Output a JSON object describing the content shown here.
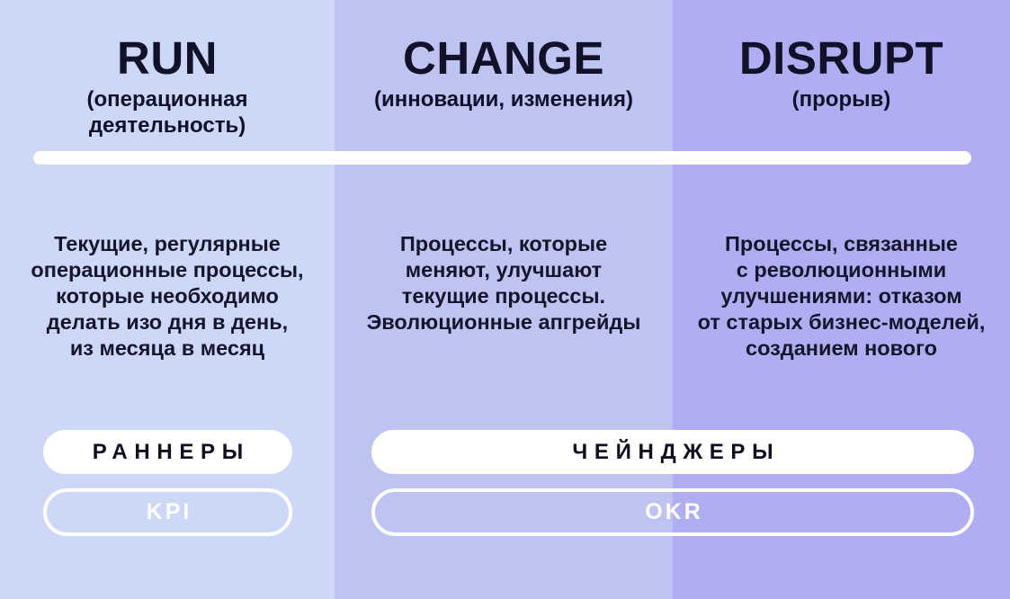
{
  "columns": [
    {
      "title": "RUN",
      "subtitle": "(операционная\nдеятельность)",
      "body": "Текущие, регулярные\nоперационные процессы,\nкоторые необходимо\nделать изо дня в день,\nиз месяца в месяц",
      "bg_color": "#cdd8f8"
    },
    {
      "title": "CHANGE",
      "subtitle": "(инновации, изменения)",
      "body": "Процессы, которые\nменяют, улучшают\nтекущие процессы.\nЭволюционные апгрейды",
      "bg_color": "#bfc3f2"
    },
    {
      "title": "DISRUPT",
      "subtitle": "(прорыв)",
      "body": "Процессы, связанные\nс революционными\nулучшениями: отказом\nот старых бизнес-моделей,\nсозданием нового",
      "bg_color": "#b0aef2"
    }
  ],
  "badges": {
    "runners": "РАННЕРЫ",
    "changers": "ЧЕЙНДЖЕРЫ",
    "kpi": "KPI",
    "okr": "OKR"
  },
  "colors": {
    "column_run_bg": "#cdd8f8",
    "column_change_bg": "#bfc3f2",
    "column_disrupt_bg": "#b0aef2",
    "heading_text": "#11112a",
    "body_text": "#15152c",
    "divider_and_pills": "#ffffff"
  }
}
